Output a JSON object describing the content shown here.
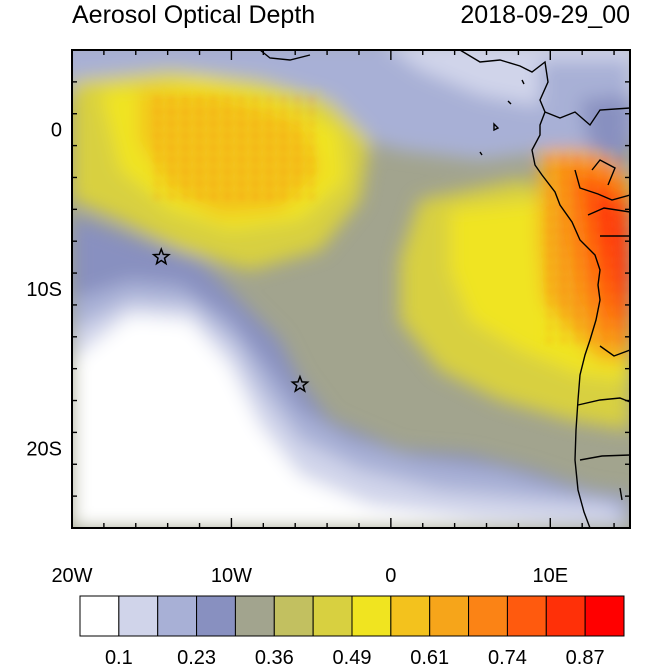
{
  "header": {
    "title": "Aerosol Optical Depth",
    "time": "2018-09-29_00"
  },
  "map": {
    "variable": "Aerosol Optical Depth",
    "region": {
      "lon_range": [
        -20,
        15
      ],
      "lat_range": [
        -25,
        5
      ]
    },
    "x_ticks": [
      {
        "value": -20,
        "label": "20W"
      },
      {
        "value": -10,
        "label": "10W"
      },
      {
        "value": 0,
        "label": "0"
      },
      {
        "value": 10,
        "label": "10E"
      }
    ],
    "y_ticks": [
      {
        "value": 0,
        "label": "0"
      },
      {
        "value": -10,
        "label": "10S"
      },
      {
        "value": -20,
        "label": "20S"
      }
    ],
    "markers": [
      {
        "name": "star",
        "lon": -14.4,
        "lat": -8.0
      },
      {
        "name": "star",
        "lon": -5.7,
        "lat": -16.0
      }
    ]
  },
  "colorbar": {
    "labels": [
      "0.1",
      "0.23",
      "0.36",
      "0.49",
      "0.61",
      "0.74",
      "0.87"
    ],
    "colors": [
      "#ffffff",
      "#d0d4ea",
      "#a8b0d6",
      "#8890c0",
      "#a2a48e",
      "#c2c060",
      "#d8d040",
      "#f0e420",
      "#f3c21d",
      "#f6a51a",
      "#fb8315",
      "#ff5a0e",
      "#ff3008",
      "#ff0000"
    ]
  }
}
